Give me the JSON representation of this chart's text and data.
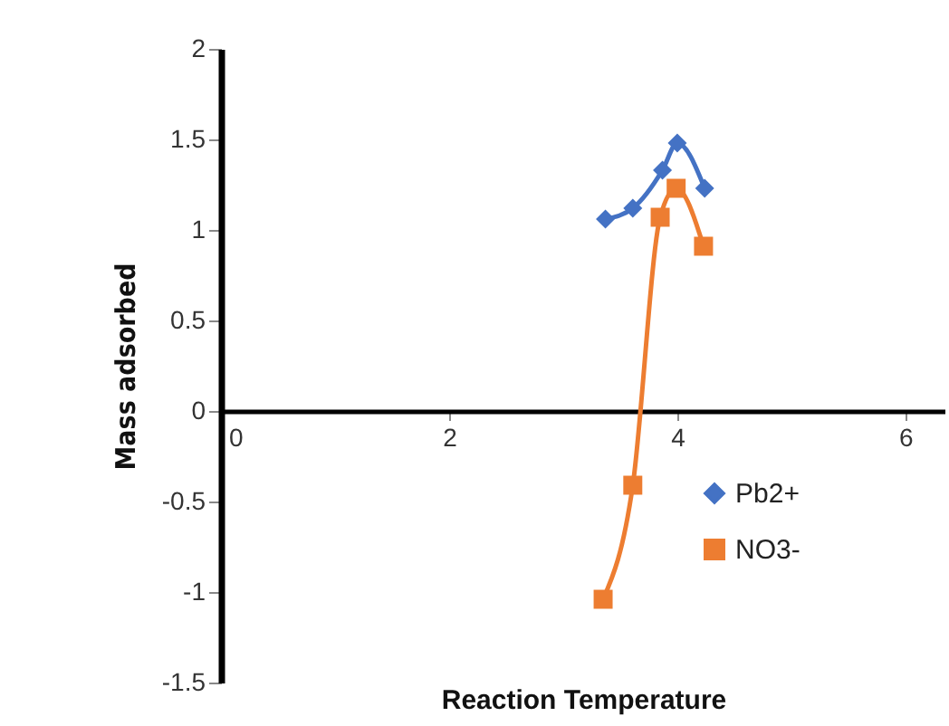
{
  "chart_data": {
    "type": "line",
    "xlabel": "Reaction Temperature",
    "ylabel": "Mass adsorbed",
    "xlim": [
      0,
      6.35
    ],
    "xticks": [
      0,
      2,
      4,
      6
    ],
    "ylim": [
      -1.5,
      2
    ],
    "yticks": [
      -1.5,
      -1,
      -0.5,
      0,
      0.5,
      1,
      1.5,
      2
    ],
    "grid": false,
    "legend": "bottom right",
    "series": [
      {
        "name": "Pb2+",
        "color": "#4472c4",
        "marker": "diamond",
        "x": [
          3.37,
          3.61,
          3.87,
          4.0,
          4.24
        ],
        "values": [
          1.06,
          1.12,
          1.33,
          1.48,
          1.23
        ]
      },
      {
        "name": "NO3-",
        "color": "#ed7d31",
        "marker": "square",
        "x": [
          3.35,
          3.61,
          3.85,
          3.99,
          4.23
        ],
        "values": [
          -1.04,
          -0.41,
          1.07,
          1.23,
          0.91
        ]
      }
    ]
  }
}
